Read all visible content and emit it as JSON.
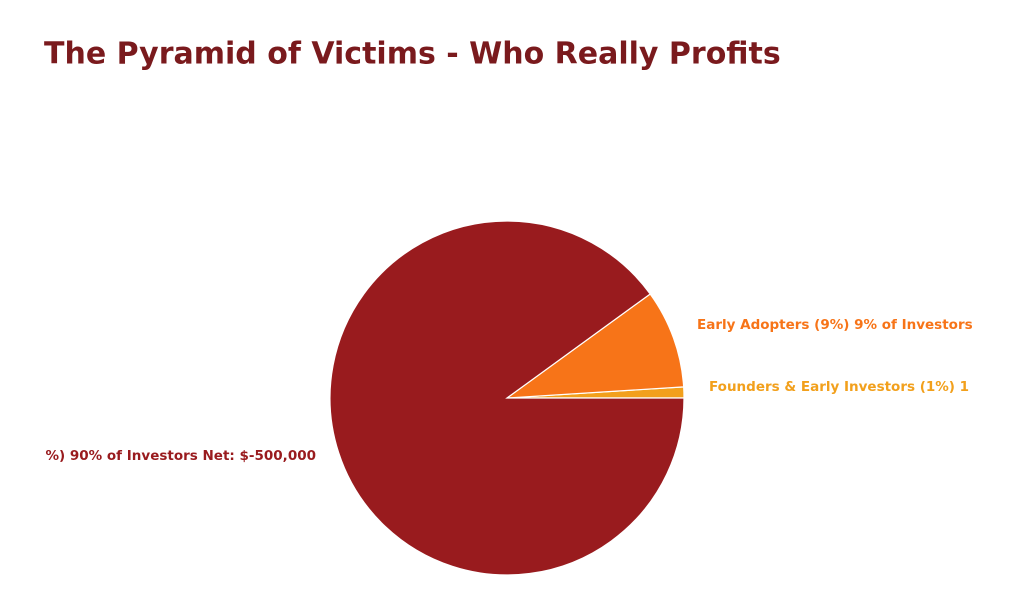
{
  "chart_data": {
    "type": "pie",
    "title": "The Pyramid of Victims - Who Really Profits",
    "values": [
      1,
      9,
      90
    ],
    "labels": [
      "Founders & Early Investors (1%) 1",
      "Early Adopters (9%) 9% of Investors",
      "%) 90% of Investors Net: $-500,000"
    ],
    "colors": [
      "#f2a01c",
      "#f77418",
      "#991b1e"
    ]
  }
}
